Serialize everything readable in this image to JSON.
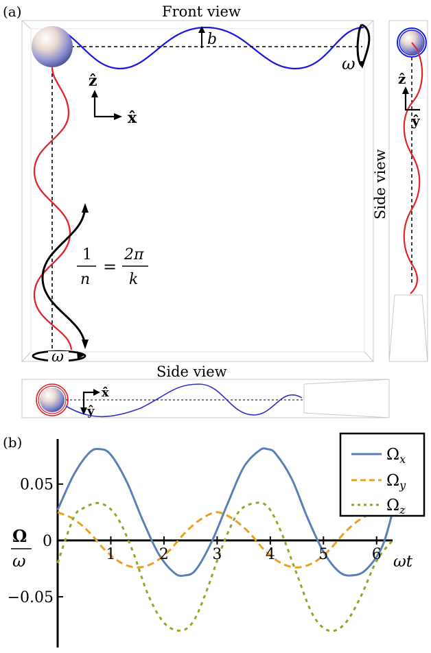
{
  "panel_a": {
    "label": "(a)",
    "front_view_title": "Front view",
    "side_view_right_title": "Side view",
    "side_view_bottom_title": "Side view",
    "b_label": "b",
    "omega_top": "ω",
    "omega_bottom": "ω",
    "z_axis": "ẑ",
    "x_axis": "x̂",
    "z_axis_side": "ẑ",
    "y_axis_side": "ŷ",
    "x_axis_bottom": "x̂",
    "y_axis_bottom": "ŷ",
    "pitch_lhs_num": "1",
    "pitch_lhs_den": "n",
    "pitch_eq": "=",
    "pitch_rhs_num": "2π",
    "pitch_rhs_den": "k"
  },
  "panel_b": {
    "label": "(b)",
    "ylabel_num": "Ω",
    "ylabel_den": "ω",
    "xlabel": "ωt"
  },
  "colors": {
    "omega_x": "#5b7fb5",
    "omega_y": "#e8a020",
    "omega_z": "#8aaa2a",
    "helix_red": "#e0242a",
    "helix_blue": "#1a1ae0"
  },
  "chart_data": {
    "type": "line",
    "xlabel": "ωt",
    "ylabel": "Ω/ω",
    "xlim": [
      0,
      6.3
    ],
    "ylim": [
      -0.095,
      0.09
    ],
    "x_ticks": [
      1,
      2,
      3,
      4,
      5,
      6
    ],
    "x_tick_labels": [
      "1",
      "2",
      "3",
      "4",
      "5",
      "6"
    ],
    "y_ticks": [
      0.05,
      0,
      -0.05
    ],
    "y_tick_labels": [
      "0.05",
      "0",
      "−0.05"
    ],
    "legend_position": "top-right",
    "series": [
      {
        "name": "Ωx",
        "style": "solid",
        "color": "#5b7fb5",
        "x": [
          0,
          0.3,
          0.6,
          0.8,
          1.0,
          1.3,
          1.6,
          1.9,
          2.2,
          2.4,
          2.6,
          2.9,
          3.2,
          3.5,
          3.8,
          3.95,
          4.1,
          4.4,
          4.7,
          5.0,
          5.3,
          5.55,
          5.8,
          6.1,
          6.3
        ],
        "y": [
          0.027,
          0.058,
          0.078,
          0.081,
          0.076,
          0.052,
          0.018,
          -0.012,
          -0.029,
          -0.031,
          -0.026,
          -0.001,
          0.033,
          0.065,
          0.08,
          0.081,
          0.077,
          0.055,
          0.02,
          -0.01,
          -0.028,
          -0.031,
          -0.026,
          -0.006,
          0.025
        ]
      },
      {
        "name": "Ωy",
        "style": "dashed",
        "color": "#e8a020",
        "x": [
          0,
          0.3,
          0.6,
          0.9,
          1.2,
          1.5,
          1.8,
          2.1,
          2.4,
          2.7,
          3.0,
          3.3,
          3.6,
          3.9,
          4.2,
          4.5,
          4.8,
          5.1,
          5.4,
          5.7,
          6.0,
          6.3
        ],
        "y": [
          0.025,
          0.019,
          0.007,
          -0.009,
          -0.02,
          -0.024,
          -0.02,
          -0.009,
          0.007,
          0.019,
          0.025,
          0.019,
          0.007,
          -0.009,
          -0.02,
          -0.024,
          -0.02,
          -0.009,
          0.007,
          0.019,
          0.025,
          0.025
        ]
      },
      {
        "name": "Ωz",
        "style": "dotted",
        "color": "#8aaa2a",
        "x": [
          0,
          0.3,
          0.5,
          0.8,
          1.1,
          1.4,
          1.7,
          2.0,
          2.3,
          2.55,
          2.8,
          3.1,
          3.4,
          3.7,
          3.95,
          4.2,
          4.5,
          4.8,
          5.1,
          5.4,
          5.7,
          6.0,
          6.3
        ],
        "y": [
          -0.02,
          0.02,
          0.029,
          0.033,
          0.022,
          -0.008,
          -0.048,
          -0.073,
          -0.08,
          -0.072,
          -0.045,
          -0.005,
          0.025,
          0.033,
          0.03,
          0.008,
          -0.03,
          -0.066,
          -0.08,
          -0.074,
          -0.05,
          -0.018,
          0.0
        ]
      }
    ]
  }
}
